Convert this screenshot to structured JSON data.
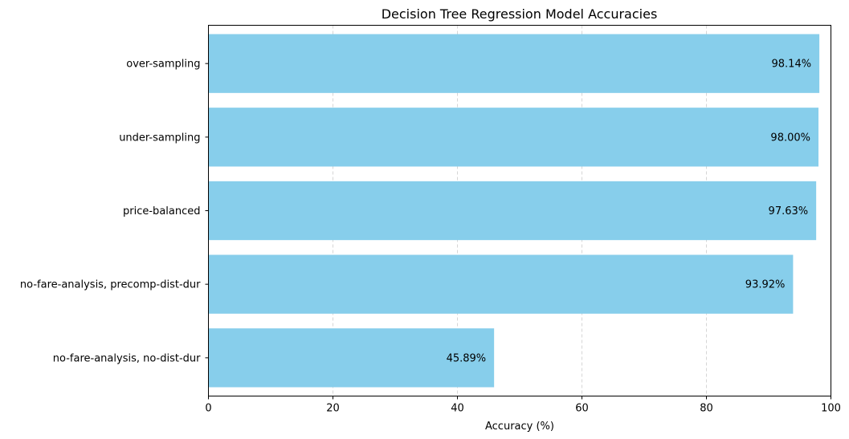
{
  "chart_data": {
    "type": "bar",
    "orientation": "horizontal",
    "title": "Decision Tree Regression Model Accuracies",
    "xlabel": "Accuracy (%)",
    "ylabel": "",
    "xlim": [
      0,
      100
    ],
    "x_ticks": [
      0,
      20,
      40,
      60,
      80,
      100
    ],
    "categories": [
      "no-fare-analysis, no-dist-dur",
      "no-fare-analysis, precomp-dist-dur",
      "price-balanced",
      "under-sampling",
      "over-sampling"
    ],
    "values": [
      45.89,
      93.92,
      97.63,
      98.0,
      98.14
    ],
    "value_labels": [
      "45.89%",
      "93.92%",
      "97.63%",
      "98.00%",
      "98.14%"
    ],
    "grid": "x-axis dashed",
    "legend": "none",
    "bar_color": "#87ceeb",
    "grid_color": "#cccccc"
  }
}
